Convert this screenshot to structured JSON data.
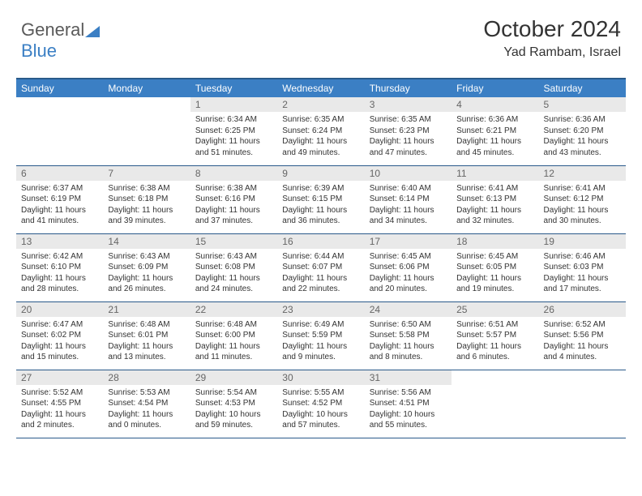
{
  "brand": {
    "part1": "General",
    "part2": "Blue"
  },
  "title": "October 2024",
  "subtitle": "Yad Rambam, Israel",
  "colors": {
    "header_bg": "#3b7fc4",
    "header_border": "#2a5a8a",
    "daynum_bg": "#e9e9e9"
  },
  "day_headers": [
    "Sunday",
    "Monday",
    "Tuesday",
    "Wednesday",
    "Thursday",
    "Friday",
    "Saturday"
  ],
  "weeks": [
    [
      null,
      null,
      {
        "n": "1",
        "sr": "Sunrise: 6:34 AM",
        "ss": "Sunset: 6:25 PM",
        "dl1": "Daylight: 11 hours",
        "dl2": "and 51 minutes."
      },
      {
        "n": "2",
        "sr": "Sunrise: 6:35 AM",
        "ss": "Sunset: 6:24 PM",
        "dl1": "Daylight: 11 hours",
        "dl2": "and 49 minutes."
      },
      {
        "n": "3",
        "sr": "Sunrise: 6:35 AM",
        "ss": "Sunset: 6:23 PM",
        "dl1": "Daylight: 11 hours",
        "dl2": "and 47 minutes."
      },
      {
        "n": "4",
        "sr": "Sunrise: 6:36 AM",
        "ss": "Sunset: 6:21 PM",
        "dl1": "Daylight: 11 hours",
        "dl2": "and 45 minutes."
      },
      {
        "n": "5",
        "sr": "Sunrise: 6:36 AM",
        "ss": "Sunset: 6:20 PM",
        "dl1": "Daylight: 11 hours",
        "dl2": "and 43 minutes."
      }
    ],
    [
      {
        "n": "6",
        "sr": "Sunrise: 6:37 AM",
        "ss": "Sunset: 6:19 PM",
        "dl1": "Daylight: 11 hours",
        "dl2": "and 41 minutes."
      },
      {
        "n": "7",
        "sr": "Sunrise: 6:38 AM",
        "ss": "Sunset: 6:18 PM",
        "dl1": "Daylight: 11 hours",
        "dl2": "and 39 minutes."
      },
      {
        "n": "8",
        "sr": "Sunrise: 6:38 AM",
        "ss": "Sunset: 6:16 PM",
        "dl1": "Daylight: 11 hours",
        "dl2": "and 37 minutes."
      },
      {
        "n": "9",
        "sr": "Sunrise: 6:39 AM",
        "ss": "Sunset: 6:15 PM",
        "dl1": "Daylight: 11 hours",
        "dl2": "and 36 minutes."
      },
      {
        "n": "10",
        "sr": "Sunrise: 6:40 AM",
        "ss": "Sunset: 6:14 PM",
        "dl1": "Daylight: 11 hours",
        "dl2": "and 34 minutes."
      },
      {
        "n": "11",
        "sr": "Sunrise: 6:41 AM",
        "ss": "Sunset: 6:13 PM",
        "dl1": "Daylight: 11 hours",
        "dl2": "and 32 minutes."
      },
      {
        "n": "12",
        "sr": "Sunrise: 6:41 AM",
        "ss": "Sunset: 6:12 PM",
        "dl1": "Daylight: 11 hours",
        "dl2": "and 30 minutes."
      }
    ],
    [
      {
        "n": "13",
        "sr": "Sunrise: 6:42 AM",
        "ss": "Sunset: 6:10 PM",
        "dl1": "Daylight: 11 hours",
        "dl2": "and 28 minutes."
      },
      {
        "n": "14",
        "sr": "Sunrise: 6:43 AM",
        "ss": "Sunset: 6:09 PM",
        "dl1": "Daylight: 11 hours",
        "dl2": "and 26 minutes."
      },
      {
        "n": "15",
        "sr": "Sunrise: 6:43 AM",
        "ss": "Sunset: 6:08 PM",
        "dl1": "Daylight: 11 hours",
        "dl2": "and 24 minutes."
      },
      {
        "n": "16",
        "sr": "Sunrise: 6:44 AM",
        "ss": "Sunset: 6:07 PM",
        "dl1": "Daylight: 11 hours",
        "dl2": "and 22 minutes."
      },
      {
        "n": "17",
        "sr": "Sunrise: 6:45 AM",
        "ss": "Sunset: 6:06 PM",
        "dl1": "Daylight: 11 hours",
        "dl2": "and 20 minutes."
      },
      {
        "n": "18",
        "sr": "Sunrise: 6:45 AM",
        "ss": "Sunset: 6:05 PM",
        "dl1": "Daylight: 11 hours",
        "dl2": "and 19 minutes."
      },
      {
        "n": "19",
        "sr": "Sunrise: 6:46 AM",
        "ss": "Sunset: 6:03 PM",
        "dl1": "Daylight: 11 hours",
        "dl2": "and 17 minutes."
      }
    ],
    [
      {
        "n": "20",
        "sr": "Sunrise: 6:47 AM",
        "ss": "Sunset: 6:02 PM",
        "dl1": "Daylight: 11 hours",
        "dl2": "and 15 minutes."
      },
      {
        "n": "21",
        "sr": "Sunrise: 6:48 AM",
        "ss": "Sunset: 6:01 PM",
        "dl1": "Daylight: 11 hours",
        "dl2": "and 13 minutes."
      },
      {
        "n": "22",
        "sr": "Sunrise: 6:48 AM",
        "ss": "Sunset: 6:00 PM",
        "dl1": "Daylight: 11 hours",
        "dl2": "and 11 minutes."
      },
      {
        "n": "23",
        "sr": "Sunrise: 6:49 AM",
        "ss": "Sunset: 5:59 PM",
        "dl1": "Daylight: 11 hours",
        "dl2": "and 9 minutes."
      },
      {
        "n": "24",
        "sr": "Sunrise: 6:50 AM",
        "ss": "Sunset: 5:58 PM",
        "dl1": "Daylight: 11 hours",
        "dl2": "and 8 minutes."
      },
      {
        "n": "25",
        "sr": "Sunrise: 6:51 AM",
        "ss": "Sunset: 5:57 PM",
        "dl1": "Daylight: 11 hours",
        "dl2": "and 6 minutes."
      },
      {
        "n": "26",
        "sr": "Sunrise: 6:52 AM",
        "ss": "Sunset: 5:56 PM",
        "dl1": "Daylight: 11 hours",
        "dl2": "and 4 minutes."
      }
    ],
    [
      {
        "n": "27",
        "sr": "Sunrise: 5:52 AM",
        "ss": "Sunset: 4:55 PM",
        "dl1": "Daylight: 11 hours",
        "dl2": "and 2 minutes."
      },
      {
        "n": "28",
        "sr": "Sunrise: 5:53 AM",
        "ss": "Sunset: 4:54 PM",
        "dl1": "Daylight: 11 hours",
        "dl2": "and 0 minutes."
      },
      {
        "n": "29",
        "sr": "Sunrise: 5:54 AM",
        "ss": "Sunset: 4:53 PM",
        "dl1": "Daylight: 10 hours",
        "dl2": "and 59 minutes."
      },
      {
        "n": "30",
        "sr": "Sunrise: 5:55 AM",
        "ss": "Sunset: 4:52 PM",
        "dl1": "Daylight: 10 hours",
        "dl2": "and 57 minutes."
      },
      {
        "n": "31",
        "sr": "Sunrise: 5:56 AM",
        "ss": "Sunset: 4:51 PM",
        "dl1": "Daylight: 10 hours",
        "dl2": "and 55 minutes."
      },
      null,
      null
    ]
  ]
}
